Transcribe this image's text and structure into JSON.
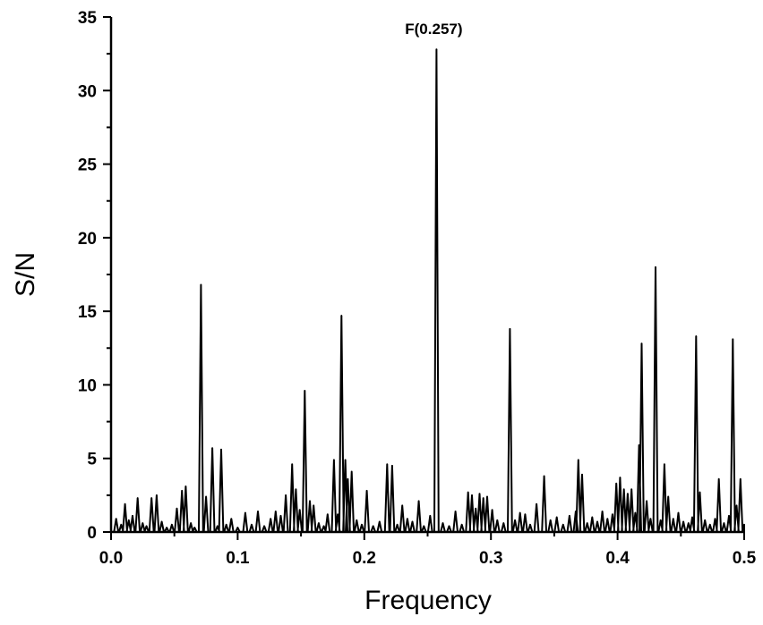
{
  "chart_data": {
    "type": "line",
    "title": "",
    "xlabel": "Frequency",
    "ylabel": "S/N",
    "xlim": [
      0.0,
      0.5
    ],
    "ylim": [
      0,
      35
    ],
    "xticks": [
      0.0,
      0.1,
      0.2,
      0.3,
      0.4,
      0.5
    ],
    "xtick_labels": [
      "0.0",
      "0.1",
      "0.2",
      "0.3",
      "0.4",
      "0.5"
    ],
    "yticks": [
      0,
      5,
      10,
      15,
      20,
      25,
      30,
      35
    ],
    "ytick_labels": [
      "0",
      "5",
      "10",
      "15",
      "20",
      "25",
      "30",
      "35"
    ],
    "grid": false,
    "legend": "none",
    "line_color": "#000000",
    "annotations": [
      {
        "text": "F(0.257)",
        "x": 0.257,
        "y": 32.8
      }
    ],
    "peaks": [
      {
        "x": 0.004,
        "y": 0.9
      },
      {
        "x": 0.008,
        "y": 0.5
      },
      {
        "x": 0.011,
        "y": 1.9
      },
      {
        "x": 0.014,
        "y": 0.8
      },
      {
        "x": 0.017,
        "y": 1.1
      },
      {
        "x": 0.021,
        "y": 2.3
      },
      {
        "x": 0.025,
        "y": 0.6
      },
      {
        "x": 0.028,
        "y": 0.4
      },
      {
        "x": 0.032,
        "y": 2.3
      },
      {
        "x": 0.036,
        "y": 2.5
      },
      {
        "x": 0.04,
        "y": 0.7
      },
      {
        "x": 0.044,
        "y": 0.3
      },
      {
        "x": 0.048,
        "y": 0.5
      },
      {
        "x": 0.052,
        "y": 1.6
      },
      {
        "x": 0.056,
        "y": 2.8
      },
      {
        "x": 0.059,
        "y": 3.1
      },
      {
        "x": 0.063,
        "y": 0.6
      },
      {
        "x": 0.066,
        "y": 0.3
      },
      {
        "x": 0.071,
        "y": 16.8
      },
      {
        "x": 0.075,
        "y": 2.4
      },
      {
        "x": 0.08,
        "y": 5.7
      },
      {
        "x": 0.084,
        "y": 0.4
      },
      {
        "x": 0.087,
        "y": 5.6
      },
      {
        "x": 0.091,
        "y": 0.5
      },
      {
        "x": 0.095,
        "y": 0.9
      },
      {
        "x": 0.1,
        "y": 0.3
      },
      {
        "x": 0.106,
        "y": 1.3
      },
      {
        "x": 0.111,
        "y": 0.5
      },
      {
        "x": 0.116,
        "y": 1.4
      },
      {
        "x": 0.121,
        "y": 0.4
      },
      {
        "x": 0.126,
        "y": 0.9
      },
      {
        "x": 0.13,
        "y": 1.4
      },
      {
        "x": 0.134,
        "y": 1.1
      },
      {
        "x": 0.138,
        "y": 2.5
      },
      {
        "x": 0.143,
        "y": 4.6
      },
      {
        "x": 0.146,
        "y": 2.9
      },
      {
        "x": 0.149,
        "y": 1.5
      },
      {
        "x": 0.153,
        "y": 9.6
      },
      {
        "x": 0.157,
        "y": 2.1
      },
      {
        "x": 0.16,
        "y": 1.8
      },
      {
        "x": 0.164,
        "y": 0.6
      },
      {
        "x": 0.168,
        "y": 0.4
      },
      {
        "x": 0.171,
        "y": 1.2
      },
      {
        "x": 0.176,
        "y": 4.9
      },
      {
        "x": 0.179,
        "y": 1.2
      },
      {
        "x": 0.182,
        "y": 14.7
      },
      {
        "x": 0.185,
        "y": 4.9
      },
      {
        "x": 0.187,
        "y": 3.6
      },
      {
        "x": 0.19,
        "y": 4.1
      },
      {
        "x": 0.194,
        "y": 0.8
      },
      {
        "x": 0.198,
        "y": 0.5
      },
      {
        "x": 0.202,
        "y": 2.8
      },
      {
        "x": 0.207,
        "y": 0.4
      },
      {
        "x": 0.212,
        "y": 0.7
      },
      {
        "x": 0.218,
        "y": 4.6
      },
      {
        "x": 0.222,
        "y": 4.5
      },
      {
        "x": 0.226,
        "y": 0.5
      },
      {
        "x": 0.23,
        "y": 1.8
      },
      {
        "x": 0.234,
        "y": 0.9
      },
      {
        "x": 0.238,
        "y": 0.7
      },
      {
        "x": 0.243,
        "y": 2.1
      },
      {
        "x": 0.247,
        "y": 0.4
      },
      {
        "x": 0.252,
        "y": 1.1
      },
      {
        "x": 0.257,
        "y": 32.8
      },
      {
        "x": 0.262,
        "y": 0.6
      },
      {
        "x": 0.267,
        "y": 0.4
      },
      {
        "x": 0.272,
        "y": 1.4
      },
      {
        "x": 0.277,
        "y": 0.5
      },
      {
        "x": 0.282,
        "y": 2.7
      },
      {
        "x": 0.285,
        "y": 2.5
      },
      {
        "x": 0.288,
        "y": 1.6
      },
      {
        "x": 0.291,
        "y": 2.6
      },
      {
        "x": 0.294,
        "y": 2.3
      },
      {
        "x": 0.297,
        "y": 2.4
      },
      {
        "x": 0.301,
        "y": 1.5
      },
      {
        "x": 0.305,
        "y": 0.8
      },
      {
        "x": 0.31,
        "y": 0.6
      },
      {
        "x": 0.315,
        "y": 13.8
      },
      {
        "x": 0.319,
        "y": 0.8
      },
      {
        "x": 0.323,
        "y": 1.3
      },
      {
        "x": 0.327,
        "y": 1.2
      },
      {
        "x": 0.331,
        "y": 0.5
      },
      {
        "x": 0.336,
        "y": 1.9
      },
      {
        "x": 0.342,
        "y": 3.8
      },
      {
        "x": 0.347,
        "y": 0.8
      },
      {
        "x": 0.352,
        "y": 1.0
      },
      {
        "x": 0.357,
        "y": 0.5
      },
      {
        "x": 0.362,
        "y": 1.1
      },
      {
        "x": 0.367,
        "y": 1.4
      },
      {
        "x": 0.369,
        "y": 4.9
      },
      {
        "x": 0.372,
        "y": 3.9
      },
      {
        "x": 0.376,
        "y": 0.6
      },
      {
        "x": 0.38,
        "y": 1.0
      },
      {
        "x": 0.384,
        "y": 0.7
      },
      {
        "x": 0.388,
        "y": 1.4
      },
      {
        "x": 0.392,
        "y": 0.9
      },
      {
        "x": 0.396,
        "y": 1.2
      },
      {
        "x": 0.399,
        "y": 3.3
      },
      {
        "x": 0.402,
        "y": 3.7
      },
      {
        "x": 0.405,
        "y": 2.9
      },
      {
        "x": 0.408,
        "y": 2.6
      },
      {
        "x": 0.411,
        "y": 2.9
      },
      {
        "x": 0.414,
        "y": 1.3
      },
      {
        "x": 0.417,
        "y": 5.9
      },
      {
        "x": 0.419,
        "y": 12.8
      },
      {
        "x": 0.423,
        "y": 2.1
      },
      {
        "x": 0.426,
        "y": 0.9
      },
      {
        "x": 0.43,
        "y": 18.0
      },
      {
        "x": 0.434,
        "y": 0.8
      },
      {
        "x": 0.437,
        "y": 4.6
      },
      {
        "x": 0.44,
        "y": 2.4
      },
      {
        "x": 0.444,
        "y": 0.9
      },
      {
        "x": 0.448,
        "y": 1.3
      },
      {
        "x": 0.452,
        "y": 0.7
      },
      {
        "x": 0.456,
        "y": 0.6
      },
      {
        "x": 0.459,
        "y": 1.0
      },
      {
        "x": 0.462,
        "y": 13.3
      },
      {
        "x": 0.465,
        "y": 2.7
      },
      {
        "x": 0.469,
        "y": 0.8
      },
      {
        "x": 0.473,
        "y": 0.5
      },
      {
        "x": 0.477,
        "y": 0.9
      },
      {
        "x": 0.48,
        "y": 3.6
      },
      {
        "x": 0.484,
        "y": 0.6
      },
      {
        "x": 0.488,
        "y": 1.1
      },
      {
        "x": 0.491,
        "y": 13.1
      },
      {
        "x": 0.494,
        "y": 1.8
      },
      {
        "x": 0.497,
        "y": 3.6
      },
      {
        "x": 0.5,
        "y": 0.5
      }
    ]
  }
}
